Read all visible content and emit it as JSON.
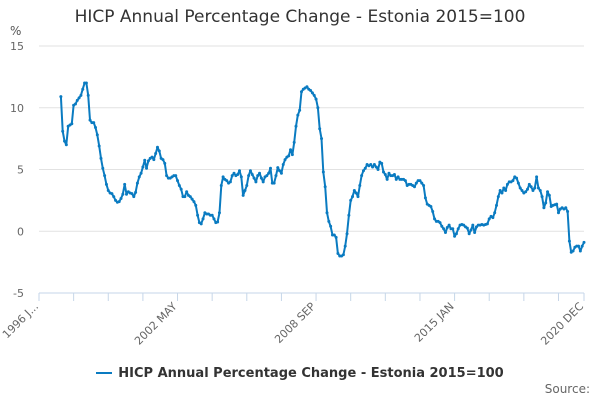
{
  "chart_data": {
    "type": "line",
    "title": "HICP Annual Percentage Change - Estonia 2015=100",
    "ylabel": "%",
    "ylim": [
      -5,
      15
    ],
    "yticks": [
      15,
      10,
      5,
      0,
      -5
    ],
    "xlim": [
      "1996-01",
      "2020-12"
    ],
    "xtick_labels": [
      "1996 J...",
      "2002 MAY",
      "2008 SEP",
      "2015 JAN",
      "2020 DEC"
    ],
    "grid": true,
    "legend_position": "bottom",
    "source_label": "Source:",
    "series": [
      {
        "name": "HICP Annual Percentage Change - Estonia 2015=100",
        "color": "#0a7bc1",
        "start": "1997-01",
        "frequency": "monthly",
        "values": [
          10.9,
          8.1,
          7.3,
          7.0,
          8.5,
          8.6,
          8.7,
          10.2,
          10.3,
          10.6,
          10.8,
          11.0,
          11.5,
          12.0,
          12.0,
          11.0,
          9.0,
          8.8,
          8.8,
          8.4,
          7.8,
          6.9,
          5.9,
          5.1,
          4.5,
          3.8,
          3.3,
          3.1,
          3.05,
          2.8,
          2.5,
          2.35,
          2.4,
          2.65,
          3.0,
          3.8,
          3.0,
          3.2,
          3.1,
          3.05,
          2.8,
          3.15,
          3.9,
          4.4,
          4.7,
          5.2,
          5.75,
          5.1,
          5.7,
          5.9,
          6.0,
          5.8,
          6.3,
          6.8,
          6.5,
          5.9,
          5.8,
          5.5,
          4.5,
          4.3,
          4.3,
          4.4,
          4.5,
          4.5,
          4.1,
          3.7,
          3.4,
          2.8,
          2.8,
          3.2,
          2.9,
          2.8,
          2.6,
          2.4,
          2.1,
          1.3,
          0.7,
          0.6,
          1.0,
          1.5,
          1.4,
          1.4,
          1.3,
          1.3,
          1.0,
          0.7,
          0.75,
          1.5,
          3.7,
          4.4,
          4.2,
          4.1,
          3.9,
          4.0,
          4.5,
          4.7,
          4.5,
          4.6,
          4.9,
          4.4,
          2.9,
          3.3,
          3.7,
          4.5,
          4.9,
          4.6,
          4.3,
          4.0,
          4.5,
          4.7,
          4.3,
          4.0,
          4.4,
          4.5,
          4.7,
          5.1,
          3.9,
          3.9,
          4.5,
          5.15,
          4.9,
          4.7,
          5.4,
          5.8,
          6.0,
          6.1,
          6.6,
          6.2,
          7.2,
          8.5,
          9.4,
          9.8,
          11.3,
          11.5,
          11.6,
          11.7,
          11.5,
          11.4,
          11.2,
          11.0,
          10.7,
          10.0,
          8.3,
          7.5,
          4.8,
          3.6,
          1.5,
          0.8,
          0.4,
          -0.3,
          -0.3,
          -0.5,
          -1.8,
          -2.0,
          -2.0,
          -1.9,
          -1.2,
          -0.2,
          1.3,
          2.5,
          2.8,
          3.3,
          3.1,
          2.8,
          3.7,
          4.5,
          4.9,
          5.1,
          5.4,
          5.3,
          5.4,
          5.2,
          5.4,
          5.2,
          5.0,
          5.6,
          5.5,
          4.8,
          4.6,
          4.2,
          4.7,
          4.5,
          4.5,
          4.6,
          4.2,
          4.4,
          4.2,
          4.2,
          4.2,
          4.1,
          3.7,
          3.8,
          3.8,
          3.7,
          3.6,
          3.9,
          4.1,
          4.1,
          3.9,
          3.7,
          2.7,
          2.2,
          2.1,
          2.0,
          1.6,
          1.0,
          0.8,
          0.8,
          0.7,
          0.4,
          0.2,
          -0.1,
          0.3,
          0.5,
          0.2,
          0.2,
          -0.4,
          -0.2,
          0.2,
          0.5,
          0.55,
          0.5,
          0.35,
          0.25,
          -0.2,
          0.1,
          0.5,
          -0.1,
          0.35,
          0.5,
          0.5,
          0.55,
          0.5,
          0.55,
          0.6,
          1.0,
          1.2,
          1.1,
          1.5,
          2.1,
          2.8,
          3.3,
          3.1,
          3.5,
          3.3,
          3.8,
          4.0,
          4.0,
          4.1,
          4.4,
          4.3,
          3.9,
          3.5,
          3.3,
          3.1,
          3.2,
          3.4,
          3.8,
          3.6,
          3.3,
          3.5,
          4.4,
          3.5,
          3.3,
          2.8,
          1.9,
          2.3,
          3.2,
          2.9,
          2.0,
          2.1,
          2.15,
          2.2,
          1.5,
          1.8,
          1.9,
          1.8,
          1.9,
          1.6,
          -0.8,
          -1.7,
          -1.6,
          -1.3,
          -1.2,
          -1.2,
          -1.6,
          -1.2,
          -0.9
        ]
      }
    ]
  }
}
